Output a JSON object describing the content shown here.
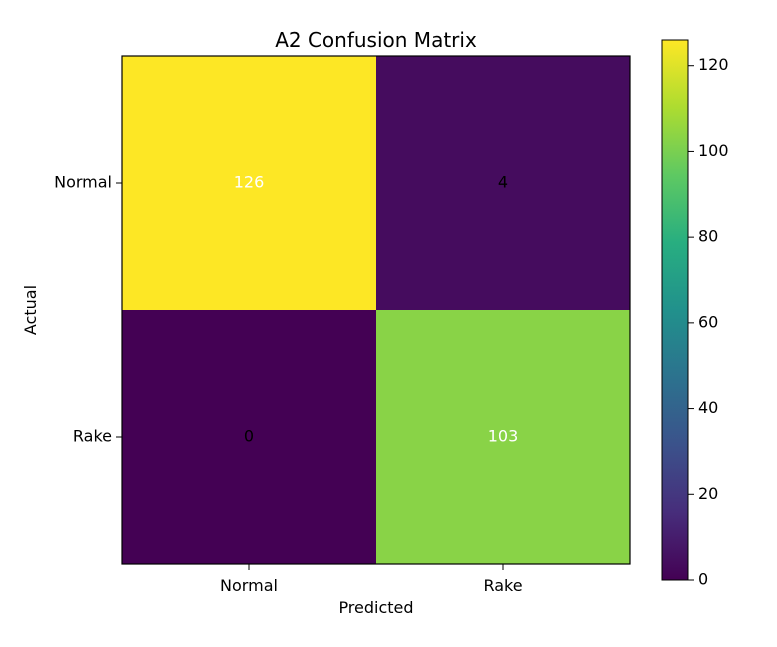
{
  "chart_data": {
    "type": "heatmap",
    "title": "A2 Confusion Matrix",
    "xlabel": "Predicted",
    "ylabel": "Actual",
    "x_categories": [
      "Normal",
      "Rake"
    ],
    "y_categories": [
      "Normal",
      "Rake"
    ],
    "values": [
      [
        126,
        4
      ],
      [
        0,
        103
      ]
    ],
    "colormap": "viridis",
    "vmin": 0,
    "vmax": 126,
    "colorbar_ticks": [
      0,
      20,
      40,
      60,
      80,
      100,
      120
    ],
    "cell_text_colors": {
      "dark_bg": "#000000",
      "light_bg": "#ffffff"
    }
  }
}
